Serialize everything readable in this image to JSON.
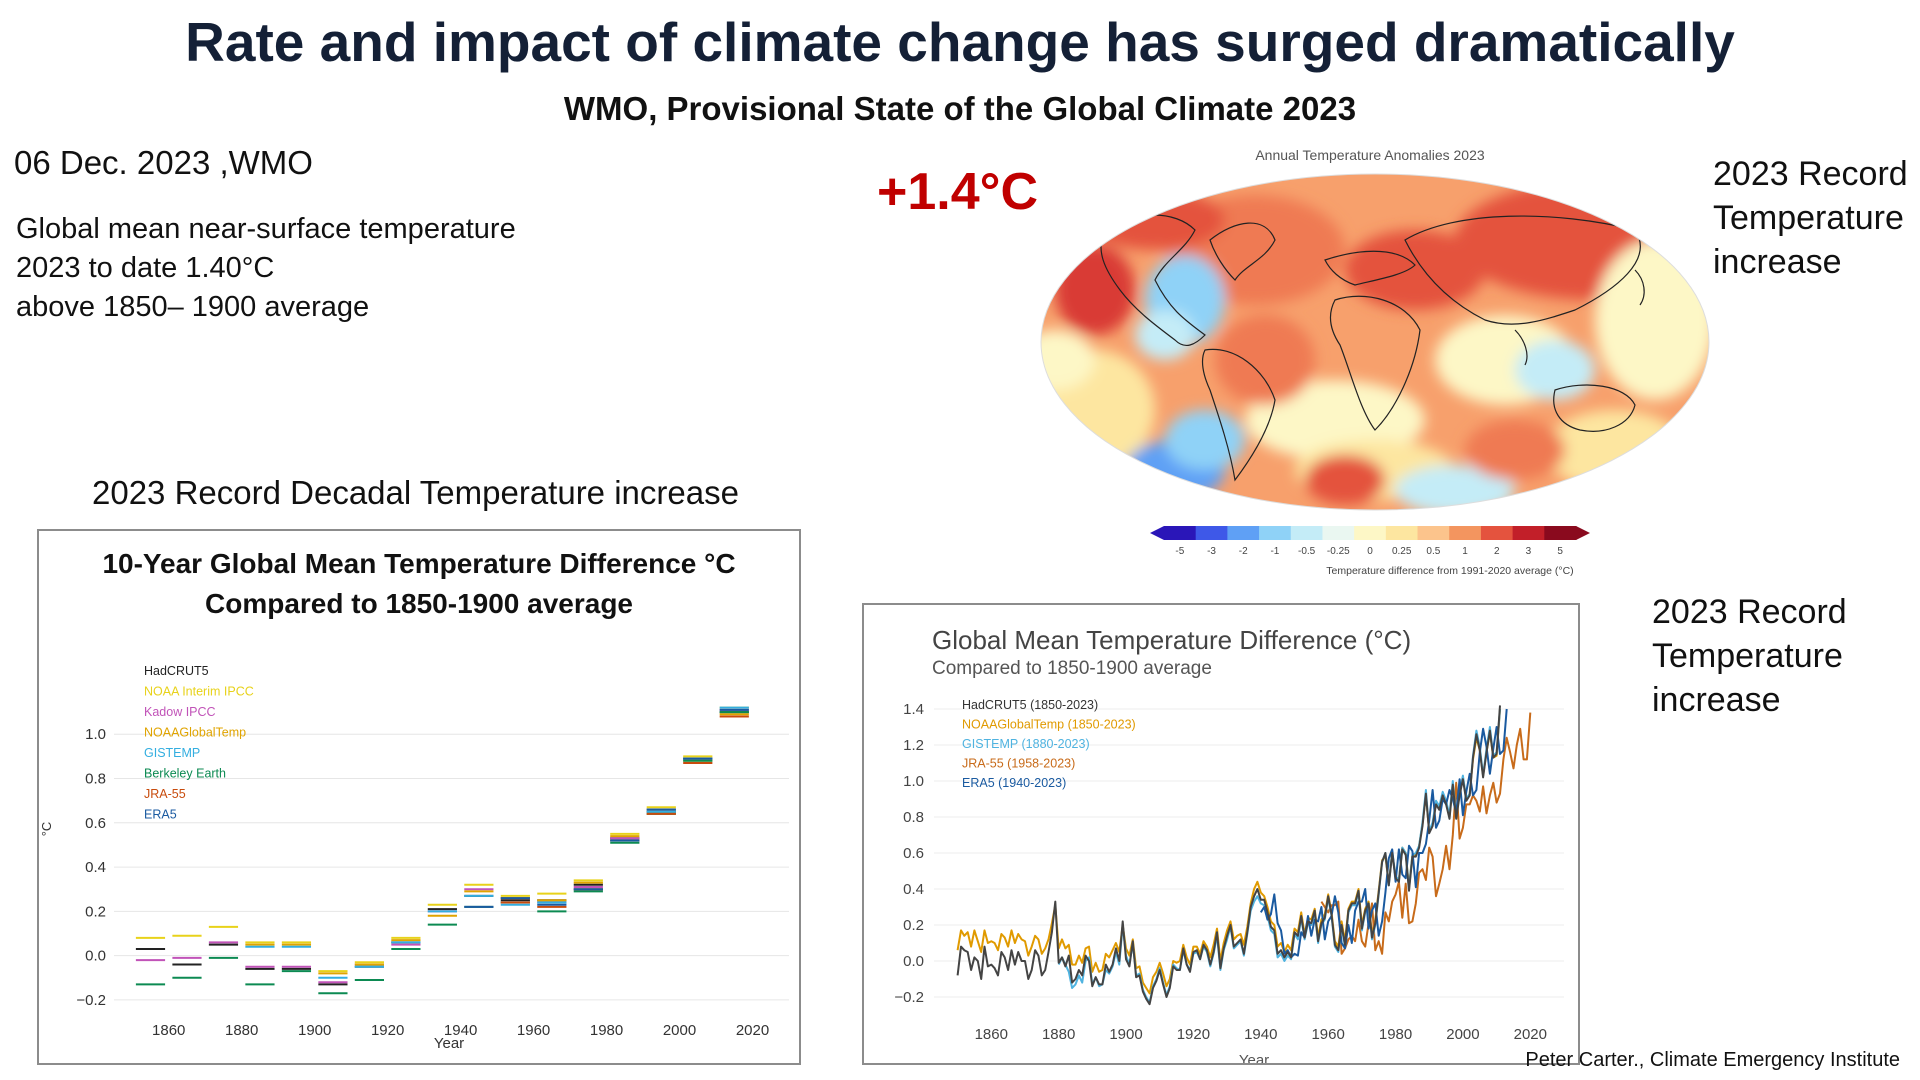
{
  "header": {
    "title": "Rate and impact of climate change has surged dramatically",
    "subtitle": "WMO, Provisional State of the Global Climate 2023"
  },
  "summary": {
    "date_source": "06 Dec. 2023 ,WMO",
    "lines": [
      "Global mean near-surface temperature",
      "2023  to date 1.40°C",
      "above 1850– 1900 average"
    ]
  },
  "headline_anomaly": "+1.4°C",
  "side_labels": {
    "top_right": [
      "2023 Record",
      "Temperature",
      "increase"
    ],
    "mid_right": [
      "2023 Record",
      "Temperature",
      "increase"
    ]
  },
  "decadal_section_label": "2023 Record Decadal Temperature increase",
  "credit": "Peter Carter., Climate Emergency Institute",
  "colors": {
    "HadCRUT5": "#222222",
    "NOAA Interim IPCC": "#e8d21a",
    "Kadow IPCC": "#c153b8",
    "NOAAGlobalTemp": "#e0a400",
    "GISTEMP": "#33aee0",
    "Berkeley Earth": "#0c8a52",
    "JRA-55": "#c84b0c",
    "ERA5": "#1a5aa0"
  },
  "map": {
    "title": "Annual Temperature Anomalies 2023",
    "colorbar_ticks": [
      "-5",
      "-3",
      "-2",
      "-1",
      "-0.5",
      "-0.25",
      "0",
      "0.25",
      "0.5",
      "1",
      "2",
      "3",
      "5"
    ],
    "colorbar_colors": [
      "#2a16b8",
      "#3e58e8",
      "#5fa0f5",
      "#8fd2f7",
      "#c4ecf7",
      "#eaf7f1",
      "#fdf7c6",
      "#fde6a0",
      "#fcc48c",
      "#f3955f",
      "#e4533e",
      "#c21f29",
      "#8a0a1e"
    ],
    "colorbar_label": "Temperature difference from 1991-2020 average (°C)"
  },
  "chart_data": [
    {
      "type": "bar",
      "title": "10-Year Global Mean Temperature Difference °C",
      "subtitle": "Compared to 1850-1900 average",
      "xlabel": "Year",
      "ylabel": "°C",
      "xlim": [
        1845,
        2030
      ],
      "ylim": [
        -0.25,
        1.15
      ],
      "xticks": [
        1860,
        1880,
        1900,
        1920,
        1940,
        1960,
        1980,
        2000,
        2020
      ],
      "yticks": [
        "−0.2",
        "0.0",
        "0.2",
        "0.4",
        "0.6",
        "0.8",
        "1.0"
      ],
      "ytick_values": [
        -0.2,
        0.0,
        0.2,
        0.4,
        0.6,
        0.8,
        1.0
      ],
      "legend": [
        "HadCRUT5",
        "NOAA Interim IPCC",
        "Kadow IPCC",
        "NOAAGlobalTemp",
        "GISTEMP",
        "Berkeley Earth",
        "JRA-55",
        "ERA5"
      ],
      "decades": [
        1850,
        1860,
        1870,
        1880,
        1890,
        1900,
        1910,
        1920,
        1930,
        1940,
        1950,
        1960,
        1970,
        1980,
        1990,
        2000,
        2010
      ],
      "series": [
        {
          "name": "HadCRUT5",
          "values": [
            0.03,
            -0.04,
            0.05,
            -0.06,
            -0.06,
            -0.13,
            -0.05,
            0.06,
            0.21,
            0.27,
            0.25,
            0.25,
            0.32,
            0.53,
            0.65,
            0.89,
            1.1
          ]
        },
        {
          "name": "NOAA Interim IPCC",
          "values": [
            0.08,
            0.09,
            0.13,
            0.06,
            0.06,
            -0.07,
            -0.03,
            0.08,
            0.23,
            0.32,
            0.27,
            0.28,
            0.34,
            0.55,
            0.67,
            0.9,
            1.12
          ]
        },
        {
          "name": "Kadow IPCC",
          "values": [
            -0.02,
            -0.01,
            0.06,
            -0.05,
            -0.05,
            -0.12,
            -0.04,
            0.05,
            0.2,
            0.3,
            0.26,
            0.24,
            0.31,
            0.53,
            0.66,
            0.89,
            1.11
          ]
        },
        {
          "name": "NOAAGlobalTemp",
          "values": [
            null,
            null,
            null,
            0.05,
            0.05,
            -0.08,
            -0.04,
            0.07,
            0.18,
            0.29,
            0.26,
            0.25,
            0.33,
            0.54,
            0.66,
            0.88,
            1.09
          ]
        },
        {
          "name": "GISTEMP",
          "values": [
            null,
            null,
            null,
            0.04,
            0.04,
            -0.1,
            -0.05,
            0.06,
            0.2,
            0.27,
            0.23,
            0.24,
            0.3,
            0.52,
            0.65,
            0.89,
            1.12
          ]
        },
        {
          "name": "Berkeley Earth",
          "values": [
            -0.13,
            -0.1,
            -0.01,
            -0.13,
            -0.07,
            -0.17,
            -0.11,
            0.03,
            0.14,
            0.22,
            0.24,
            0.2,
            0.29,
            0.51,
            0.64,
            0.88,
            1.1
          ]
        },
        {
          "name": "JRA-55",
          "values": [
            null,
            null,
            null,
            null,
            null,
            null,
            null,
            null,
            null,
            null,
            0.24,
            0.22,
            0.3,
            0.52,
            0.64,
            0.87,
            1.08
          ]
        },
        {
          "name": "ERA5",
          "values": [
            null,
            null,
            null,
            null,
            null,
            null,
            null,
            null,
            null,
            0.22,
            0.26,
            0.23,
            0.3,
            0.52,
            0.66,
            0.89,
            1.11
          ]
        }
      ]
    },
    {
      "type": "line",
      "title": "Global Mean Temperature Difference (°C)",
      "subtitle": "Compared to 1850-1900 average",
      "xlabel": "Year",
      "xlim": [
        1843,
        2030
      ],
      "ylim": [
        -0.3,
        1.45
      ],
      "xticks": [
        1860,
        1880,
        1900,
        1920,
        1940,
        1960,
        1980,
        2000,
        2020
      ],
      "yticks": [
        "−0.2",
        "0.0",
        "0.2",
        "0.4",
        "0.6",
        "0.8",
        "1.0",
        "1.2",
        "1.4"
      ],
      "ytick_values": [
        -0.2,
        0.0,
        0.2,
        0.4,
        0.6,
        0.8,
        1.0,
        1.2,
        1.4
      ],
      "legend": [
        "HadCRUT5 (1850-2023)",
        "NOAAGlobalTemp (1850-2023)",
        "GISTEMP (1880-2023)",
        "JRA-55 (1958-2023)",
        "ERA5 (1940-2023)"
      ],
      "series": [
        {
          "name": "HadCRUT5",
          "x_start": 1850,
          "values": [
            -0.08,
            0.08,
            0.06,
            0.05,
            -0.05,
            0.02,
            0.0,
            -0.1,
            0.08,
            -0.03,
            -0.02,
            -0.04,
            -0.08,
            0.05,
            0.02,
            -0.05,
            0.06,
            -0.02,
            0.05,
            0.0,
            0.0,
            -0.1,
            -0.05,
            0.06,
            0.03,
            -0.08,
            -0.05,
            0.05,
            0.16,
            0.33,
            -0.01,
            0.02,
            -0.03,
            0.03,
            -0.12,
            -0.1,
            -0.05,
            -0.08,
            0.03,
            0.0,
            -0.14,
            -0.09,
            -0.13,
            -0.13,
            -0.02,
            -0.06,
            -0.02,
            0.07,
            0.0,
            0.22,
            0.01,
            -0.03,
            0.11,
            -0.09,
            -0.08,
            -0.17,
            -0.21,
            -0.24,
            -0.15,
            -0.11,
            -0.05,
            -0.13,
            -0.2,
            -0.15,
            -0.03,
            -0.05,
            -0.05,
            0.07,
            -0.02,
            -0.06,
            0.05,
            0.06,
            0.01,
            0.09,
            0.06,
            -0.02,
            0.05,
            0.16,
            -0.04,
            0.07,
            0.14,
            0.2,
            0.08,
            0.1,
            0.12,
            0.04,
            0.16,
            0.3,
            0.36,
            0.4,
            0.34,
            0.34,
            0.27,
            0.19,
            0.17,
            0.04,
            0.06,
            0.02,
            0.05,
            0.02,
            0.16,
            0.14,
            0.25,
            0.13,
            0.22,
            0.21,
            0.28,
            0.11,
            0.21,
            0.24,
            0.36,
            0.26,
            0.09,
            0.06,
            0.2,
            0.09,
            0.28,
            0.32,
            0.32,
            0.39,
            0.18,
            0.28,
            0.32,
            0.13,
            0.21,
            0.38,
            0.55,
            0.6,
            0.42,
            0.6,
            0.46,
            0.44,
            0.62,
            0.59,
            0.39,
            0.58,
            0.58,
            0.63,
            0.75,
            0.93,
            0.71,
            0.75,
            0.87,
            0.84,
            0.92,
            0.87,
            0.79,
            0.98,
            0.79,
            0.92,
            1.01,
            0.89,
            0.92,
            1.13,
            1.26,
            1.17,
            1.02,
            1.16,
            1.28,
            1.13,
            1.15,
            1.42
          ]
        },
        {
          "name": "NOAAGlobalTemp",
          "x_start": 1850,
          "values": [
            0.06,
            0.17,
            0.14,
            0.16,
            0.08,
            0.17,
            0.11,
            0.05,
            0.17,
            0.1,
            0.11,
            0.1,
            0.06,
            0.15,
            0.13,
            0.08,
            0.17,
            0.1,
            0.15,
            0.12,
            0.11,
            0.03,
            0.08,
            0.14,
            0.12,
            0.04,
            0.07,
            0.12,
            0.21,
            0.31,
            0.07,
            0.12,
            0.07,
            0.09,
            -0.02,
            -0.02,
            0.03,
            -0.01,
            0.07,
            0.08,
            -0.06,
            -0.01,
            -0.06,
            -0.05,
            0.04,
            0.02,
            0.06,
            0.1,
            0.05,
            0.2,
            0.07,
            0.03,
            0.12,
            -0.04,
            -0.03,
            -0.12,
            -0.15,
            -0.18,
            -0.09,
            -0.06,
            -0.01,
            -0.07,
            -0.14,
            -0.1,
            0.0,
            -0.01,
            0.0,
            0.09,
            0.02,
            -0.02,
            0.08,
            0.08,
            0.04,
            0.11,
            0.08,
            0.02,
            0.09,
            0.18,
            0.0,
            0.1,
            0.17,
            0.22,
            0.12,
            0.14,
            0.15,
            0.09,
            0.19,
            0.32,
            0.4,
            0.44,
            0.38,
            0.36,
            0.3,
            0.22,
            0.2,
            0.08,
            0.1,
            0.05,
            0.09,
            0.06,
            0.18,
            0.16,
            0.27,
            0.15,
            0.24,
            0.23,
            0.29,
            0.13,
            0.23,
            0.26,
            0.37,
            0.27,
            0.11,
            0.08,
            0.22,
            0.11,
            0.29,
            0.33,
            0.33,
            0.4,
            0.2,
            0.29,
            0.33,
            0.15,
            0.23,
            0.39,
            0.56,
            0.58,
            0.43,
            0.6,
            0.47,
            0.45,
            0.63,
            0.6,
            0.41,
            0.59,
            0.59,
            0.64,
            0.76,
            0.92,
            0.72,
            0.76,
            0.88,
            0.85,
            0.93,
            0.88,
            0.8,
            0.99,
            0.8,
            0.93,
            1.02,
            0.9,
            0.93,
            1.12,
            1.24,
            1.17,
            1.03,
            1.16,
            1.27,
            1.13,
            1.14,
            1.4
          ]
        },
        {
          "name": "GISTEMP",
          "x_start": 1880,
          "values": [
            -0.02,
            0.02,
            -0.02,
            -0.06,
            -0.15,
            -0.13,
            -0.08,
            -0.12,
            0.0,
            0.02,
            -0.13,
            -0.09,
            -0.14,
            -0.13,
            -0.05,
            -0.07,
            -0.03,
            0.05,
            -0.02,
            0.2,
            0.03,
            -0.02,
            0.1,
            -0.08,
            -0.07,
            -0.16,
            -0.2,
            -0.23,
            -0.14,
            -0.1,
            -0.04,
            -0.12,
            -0.19,
            -0.14,
            -0.02,
            -0.04,
            -0.05,
            0.06,
            -0.02,
            -0.05,
            0.04,
            0.05,
            0.01,
            0.08,
            0.05,
            -0.03,
            0.04,
            0.14,
            -0.05,
            0.06,
            0.12,
            0.19,
            0.07,
            0.09,
            0.11,
            0.03,
            0.15,
            0.28,
            0.33,
            0.36,
            0.32,
            0.31,
            0.25,
            0.17,
            0.15,
            0.02,
            0.04,
            0.0,
            0.03,
            0.01,
            0.15,
            0.12,
            0.24,
            0.12,
            0.21,
            0.2,
            0.27,
            0.1,
            0.2,
            0.23,
            0.35,
            0.25,
            0.08,
            0.05,
            0.19,
            0.08,
            0.27,
            0.31,
            0.31,
            0.38,
            0.17,
            0.27,
            0.31,
            0.12,
            0.2,
            0.37,
            0.55,
            0.6,
            0.42,
            0.61,
            0.47,
            0.45,
            0.63,
            0.6,
            0.4,
            0.59,
            0.6,
            0.64,
            0.77,
            0.95,
            0.72,
            0.77,
            0.89,
            0.86,
            0.94,
            0.89,
            0.81,
            1.0,
            0.8,
            0.94,
            1.03,
            0.9,
            0.93,
            1.14,
            1.28,
            1.19,
            1.03,
            1.18,
            1.3,
            1.14,
            1.16,
            1.4
          ]
        },
        {
          "name": "JRA-55",
          "x_start": 1958,
          "values": [
            0.33,
            0.3,
            0.27,
            0.31,
            0.31,
            0.33,
            0.04,
            0.07,
            0.12,
            0.14,
            0.11,
            0.23,
            0.11,
            0.08,
            0.21,
            0.32,
            0.06,
            0.11,
            0.04,
            0.27,
            0.22,
            0.33,
            0.37,
            0.44,
            0.24,
            0.43,
            0.21,
            0.22,
            0.32,
            0.49,
            0.51,
            0.45,
            0.63,
            0.58,
            0.36,
            0.43,
            0.51,
            0.64,
            0.51,
            0.7,
            0.99,
            0.68,
            0.74,
            0.87,
            0.87,
            0.92,
            0.89,
            0.83,
            0.97,
            0.82,
            0.92,
            0.99,
            0.88,
            0.93,
            1.12,
            1.24,
            1.16,
            1.07,
            1.2,
            1.29,
            1.12,
            1.12,
            1.38
          ]
        },
        {
          "name": "ERA5",
          "x_start": 1940,
          "values": [
            0.27,
            0.3,
            0.23,
            0.26,
            0.37,
            0.21,
            0.17,
            0.04,
            0.06,
            0.02,
            0.04,
            0.03,
            0.16,
            0.13,
            0.25,
            0.14,
            0.23,
            0.22,
            0.3,
            0.12,
            0.22,
            0.25,
            0.36,
            0.27,
            0.1,
            0.07,
            0.2,
            0.1,
            0.28,
            0.33,
            0.33,
            0.4,
            0.18,
            0.28,
            0.32,
            0.14,
            0.22,
            0.38,
            0.57,
            0.62,
            0.44,
            0.62,
            0.48,
            0.46,
            0.64,
            0.61,
            0.41,
            0.6,
            0.6,
            0.65,
            0.78,
            0.95,
            0.74,
            0.78,
            0.9,
            0.87,
            0.95,
            0.9,
            0.82,
            1.01,
            0.81,
            0.94,
            1.04,
            0.92,
            0.95,
            1.16,
            1.29,
            1.19,
            1.04,
            1.18,
            1.3,
            1.15,
            1.17,
            1.4
          ]
        }
      ]
    }
  ]
}
